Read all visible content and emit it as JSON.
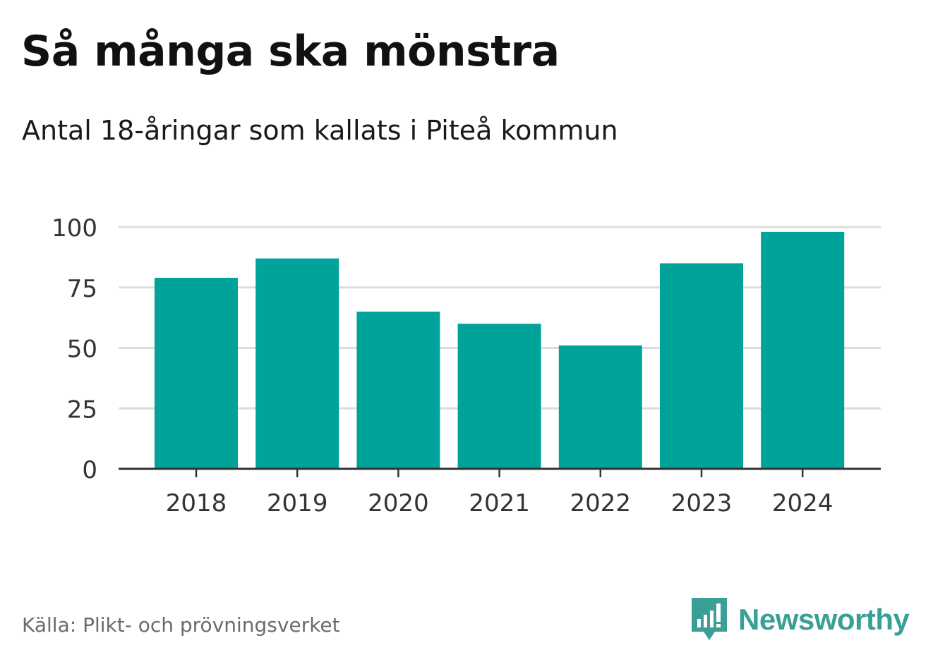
{
  "header": {
    "title": "Så många ska mönstra",
    "subtitle": "Antal 18-åringar som kallats i Piteå kommun"
  },
  "footer": {
    "source": "Källa: Plikt- och prövningsverket",
    "brand": "Newsworthy",
    "brand_icon": "bar-chart-speech-bubble-icon"
  },
  "colors": {
    "bar": "#00a39a",
    "grid": "#dddddd",
    "axis": "#333333",
    "brand": "#3a9f97"
  },
  "chart_data": {
    "type": "bar",
    "categories": [
      "2018",
      "2019",
      "2020",
      "2021",
      "2022",
      "2023",
      "2024"
    ],
    "values": [
      79,
      87,
      65,
      60,
      51,
      85,
      98
    ],
    "ylim": [
      0,
      100
    ],
    "yticks": [
      0,
      25,
      50,
      75,
      100
    ],
    "grid": true,
    "xlabel": "",
    "ylabel": ""
  }
}
